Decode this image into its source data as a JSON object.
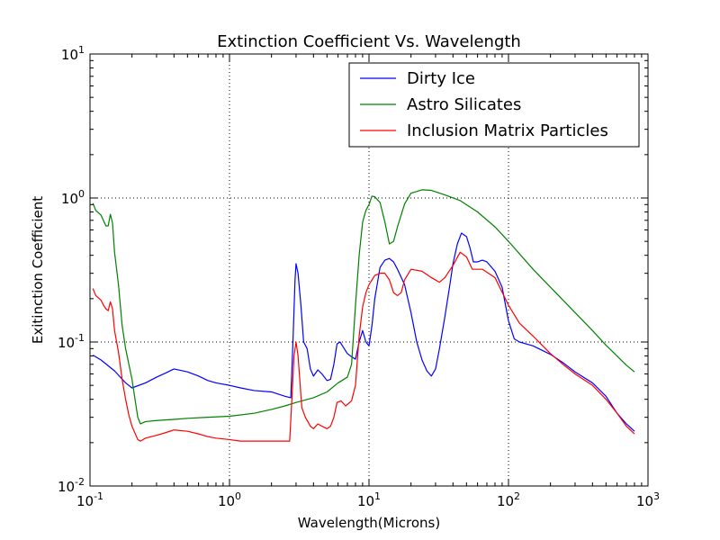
{
  "chart_data": {
    "type": "line",
    "title": "Extinction Coefficient Vs. Wavelength",
    "xlabel": "Wavelength(Microns)",
    "ylabel": "Exitinction Coefficient",
    "xscale": "log",
    "yscale": "log",
    "xlim": [
      0.1,
      1000
    ],
    "ylim": [
      0.01,
      10
    ],
    "grid": true,
    "legend_position": "top-right",
    "x_ticks": [
      {
        "value": 0.1,
        "base": "10",
        "exp": "-1"
      },
      {
        "value": 1,
        "base": "10",
        "exp": "0"
      },
      {
        "value": 10,
        "base": "10",
        "exp": "1"
      },
      {
        "value": 100,
        "base": "10",
        "exp": "2"
      },
      {
        "value": 1000,
        "base": "10",
        "exp": "3"
      }
    ],
    "y_ticks": [
      {
        "value": 0.01,
        "base": "10",
        "exp": "-2"
      },
      {
        "value": 0.1,
        "base": "10",
        "exp": "-1"
      },
      {
        "value": 1,
        "base": "10",
        "exp": "0"
      },
      {
        "value": 10,
        "base": "10",
        "exp": "1"
      }
    ],
    "series": [
      {
        "name": "Dirty Ice",
        "color": "#0000ff",
        "points": [
          [
            0.105,
            0.081
          ],
          [
            0.12,
            0.075
          ],
          [
            0.15,
            0.063
          ],
          [
            0.18,
            0.052
          ],
          [
            0.2,
            0.048
          ],
          [
            0.25,
            0.052
          ],
          [
            0.3,
            0.057
          ],
          [
            0.35,
            0.061
          ],
          [
            0.4,
            0.065
          ],
          [
            0.5,
            0.062
          ],
          [
            0.6,
            0.058
          ],
          [
            0.7,
            0.054
          ],
          [
            0.8,
            0.052
          ],
          [
            1.0,
            0.05
          ],
          [
            1.2,
            0.048
          ],
          [
            1.5,
            0.046
          ],
          [
            2.0,
            0.045
          ],
          [
            2.5,
            0.042
          ],
          [
            2.75,
            0.041
          ],
          [
            2.85,
            0.1
          ],
          [
            2.95,
            0.27
          ],
          [
            3.0,
            0.35
          ],
          [
            3.1,
            0.3
          ],
          [
            3.25,
            0.18
          ],
          [
            3.4,
            0.1
          ],
          [
            3.6,
            0.09
          ],
          [
            3.8,
            0.065
          ],
          [
            4.0,
            0.058
          ],
          [
            4.3,
            0.064
          ],
          [
            4.6,
            0.06
          ],
          [
            5.0,
            0.054
          ],
          [
            5.3,
            0.055
          ],
          [
            5.6,
            0.07
          ],
          [
            5.9,
            0.097
          ],
          [
            6.2,
            0.1
          ],
          [
            6.5,
            0.093
          ],
          [
            7.0,
            0.083
          ],
          [
            7.5,
            0.079
          ],
          [
            8.0,
            0.076
          ],
          [
            8.5,
            0.1
          ],
          [
            9.0,
            0.12
          ],
          [
            9.5,
            0.1
          ],
          [
            10.0,
            0.094
          ],
          [
            10.5,
            0.13
          ],
          [
            11.0,
            0.2
          ],
          [
            12.0,
            0.33
          ],
          [
            13.0,
            0.37
          ],
          [
            14.0,
            0.38
          ],
          [
            15.0,
            0.36
          ],
          [
            16.0,
            0.32
          ],
          [
            18.0,
            0.25
          ],
          [
            20.0,
            0.16
          ],
          [
            22.0,
            0.1
          ],
          [
            24.0,
            0.075
          ],
          [
            26.0,
            0.063
          ],
          [
            28.0,
            0.058
          ],
          [
            30.0,
            0.065
          ],
          [
            32.0,
            0.09
          ],
          [
            35.0,
            0.15
          ],
          [
            38.0,
            0.25
          ],
          [
            40.0,
            0.35
          ],
          [
            43.0,
            0.48
          ],
          [
            46.0,
            0.57
          ],
          [
            50.0,
            0.54
          ],
          [
            53.0,
            0.45
          ],
          [
            56.0,
            0.36
          ],
          [
            60.0,
            0.36
          ],
          [
            65.0,
            0.37
          ],
          [
            70.0,
            0.36
          ],
          [
            80.0,
            0.31
          ],
          [
            90.0,
            0.24
          ],
          [
            100.0,
            0.14
          ],
          [
            110.0,
            0.105
          ],
          [
            120.0,
            0.1
          ],
          [
            150.0,
            0.094
          ],
          [
            200.0,
            0.082
          ],
          [
            250.0,
            0.071
          ],
          [
            300.0,
            0.062
          ],
          [
            400.0,
            0.052
          ],
          [
            500.0,
            0.042
          ],
          [
            600.0,
            0.032
          ],
          [
            700.0,
            0.027
          ],
          [
            800.0,
            0.024
          ]
        ]
      },
      {
        "name": "Astro Silicates",
        "color": "#008000",
        "points": [
          [
            0.105,
            0.92
          ],
          [
            0.11,
            0.82
          ],
          [
            0.12,
            0.76
          ],
          [
            0.13,
            0.64
          ],
          [
            0.135,
            0.64
          ],
          [
            0.14,
            0.77
          ],
          [
            0.145,
            0.67
          ],
          [
            0.15,
            0.42
          ],
          [
            0.16,
            0.25
          ],
          [
            0.17,
            0.13
          ],
          [
            0.18,
            0.09
          ],
          [
            0.2,
            0.055
          ],
          [
            0.22,
            0.03
          ],
          [
            0.23,
            0.027
          ],
          [
            0.25,
            0.028
          ],
          [
            0.3,
            0.0285
          ],
          [
            0.4,
            0.029
          ],
          [
            0.5,
            0.0295
          ],
          [
            0.7,
            0.03
          ],
          [
            1.0,
            0.0305
          ],
          [
            1.5,
            0.032
          ],
          [
            2.0,
            0.034
          ],
          [
            2.5,
            0.036
          ],
          [
            3.0,
            0.038
          ],
          [
            4.0,
            0.041
          ],
          [
            5.0,
            0.045
          ],
          [
            6.0,
            0.052
          ],
          [
            7.0,
            0.057
          ],
          [
            7.5,
            0.07
          ],
          [
            8.0,
            0.18
          ],
          [
            8.5,
            0.4
          ],
          [
            9.0,
            0.68
          ],
          [
            9.5,
            0.82
          ],
          [
            10.0,
            0.9
          ],
          [
            10.5,
            1.03
          ],
          [
            11.0,
            1.02
          ],
          [
            12.0,
            0.93
          ],
          [
            13.0,
            0.68
          ],
          [
            14.0,
            0.48
          ],
          [
            15.0,
            0.5
          ],
          [
            16.0,
            0.63
          ],
          [
            18.0,
            0.91
          ],
          [
            20.0,
            1.08
          ],
          [
            24.0,
            1.14
          ],
          [
            28.0,
            1.13
          ],
          [
            35.0,
            1.05
          ],
          [
            45.0,
            0.96
          ],
          [
            60.0,
            0.8
          ],
          [
            80.0,
            0.63
          ],
          [
            100.0,
            0.5
          ],
          [
            150.0,
            0.32
          ],
          [
            200.0,
            0.24
          ],
          [
            300.0,
            0.16
          ],
          [
            400.0,
            0.12
          ],
          [
            500.0,
            0.095
          ],
          [
            600.0,
            0.08
          ],
          [
            700.0,
            0.069
          ],
          [
            800.0,
            0.062
          ]
        ]
      },
      {
        "name": "Inclusion Matrix Particles",
        "color": "#ff0000",
        "points": [
          [
            0.105,
            0.235
          ],
          [
            0.11,
            0.21
          ],
          [
            0.12,
            0.195
          ],
          [
            0.125,
            0.18
          ],
          [
            0.13,
            0.17
          ],
          [
            0.135,
            0.165
          ],
          [
            0.14,
            0.19
          ],
          [
            0.145,
            0.17
          ],
          [
            0.15,
            0.12
          ],
          [
            0.16,
            0.085
          ],
          [
            0.17,
            0.055
          ],
          [
            0.18,
            0.04
          ],
          [
            0.19,
            0.031
          ],
          [
            0.2,
            0.026
          ],
          [
            0.22,
            0.021
          ],
          [
            0.23,
            0.0205
          ],
          [
            0.25,
            0.0215
          ],
          [
            0.3,
            0.0225
          ],
          [
            0.35,
            0.0235
          ],
          [
            0.4,
            0.0245
          ],
          [
            0.5,
            0.024
          ],
          [
            0.6,
            0.023
          ],
          [
            0.7,
            0.022
          ],
          [
            0.8,
            0.0215
          ],
          [
            1.0,
            0.021
          ],
          [
            1.2,
            0.0205
          ],
          [
            1.5,
            0.0205
          ],
          [
            2.0,
            0.0205
          ],
          [
            2.5,
            0.0205
          ],
          [
            2.7,
            0.0205
          ],
          [
            2.8,
            0.04
          ],
          [
            2.9,
            0.08
          ],
          [
            3.0,
            0.1
          ],
          [
            3.1,
            0.08
          ],
          [
            3.3,
            0.035
          ],
          [
            3.5,
            0.03
          ],
          [
            3.8,
            0.026
          ],
          [
            4.0,
            0.025
          ],
          [
            4.3,
            0.027
          ],
          [
            4.6,
            0.026
          ],
          [
            5.0,
            0.025
          ],
          [
            5.3,
            0.026
          ],
          [
            5.6,
            0.03
          ],
          [
            5.9,
            0.038
          ],
          [
            6.3,
            0.039
          ],
          [
            6.8,
            0.036
          ],
          [
            7.5,
            0.039
          ],
          [
            8.0,
            0.05
          ],
          [
            8.5,
            0.11
          ],
          [
            9.0,
            0.175
          ],
          [
            9.5,
            0.22
          ],
          [
            10.0,
            0.25
          ],
          [
            11.0,
            0.29
          ],
          [
            12.0,
            0.3
          ],
          [
            13.0,
            0.3
          ],
          [
            14.0,
            0.27
          ],
          [
            15.0,
            0.22
          ],
          [
            16.0,
            0.21
          ],
          [
            17.0,
            0.22
          ],
          [
            18.0,
            0.27
          ],
          [
            20.0,
            0.32
          ],
          [
            24.0,
            0.31
          ],
          [
            28.0,
            0.28
          ],
          [
            32.0,
            0.26
          ],
          [
            35.0,
            0.28
          ],
          [
            40.0,
            0.34
          ],
          [
            45.0,
            0.42
          ],
          [
            50.0,
            0.39
          ],
          [
            55.0,
            0.32
          ],
          [
            65.0,
            0.32
          ],
          [
            80.0,
            0.28
          ],
          [
            100.0,
            0.18
          ],
          [
            120.0,
            0.135
          ],
          [
            150.0,
            0.11
          ],
          [
            200.0,
            0.083
          ],
          [
            250.0,
            0.069
          ],
          [
            300.0,
            0.06
          ],
          [
            400.0,
            0.05
          ],
          [
            500.0,
            0.04
          ],
          [
            600.0,
            0.032
          ],
          [
            700.0,
            0.026
          ],
          [
            800.0,
            0.023
          ]
        ]
      }
    ]
  }
}
